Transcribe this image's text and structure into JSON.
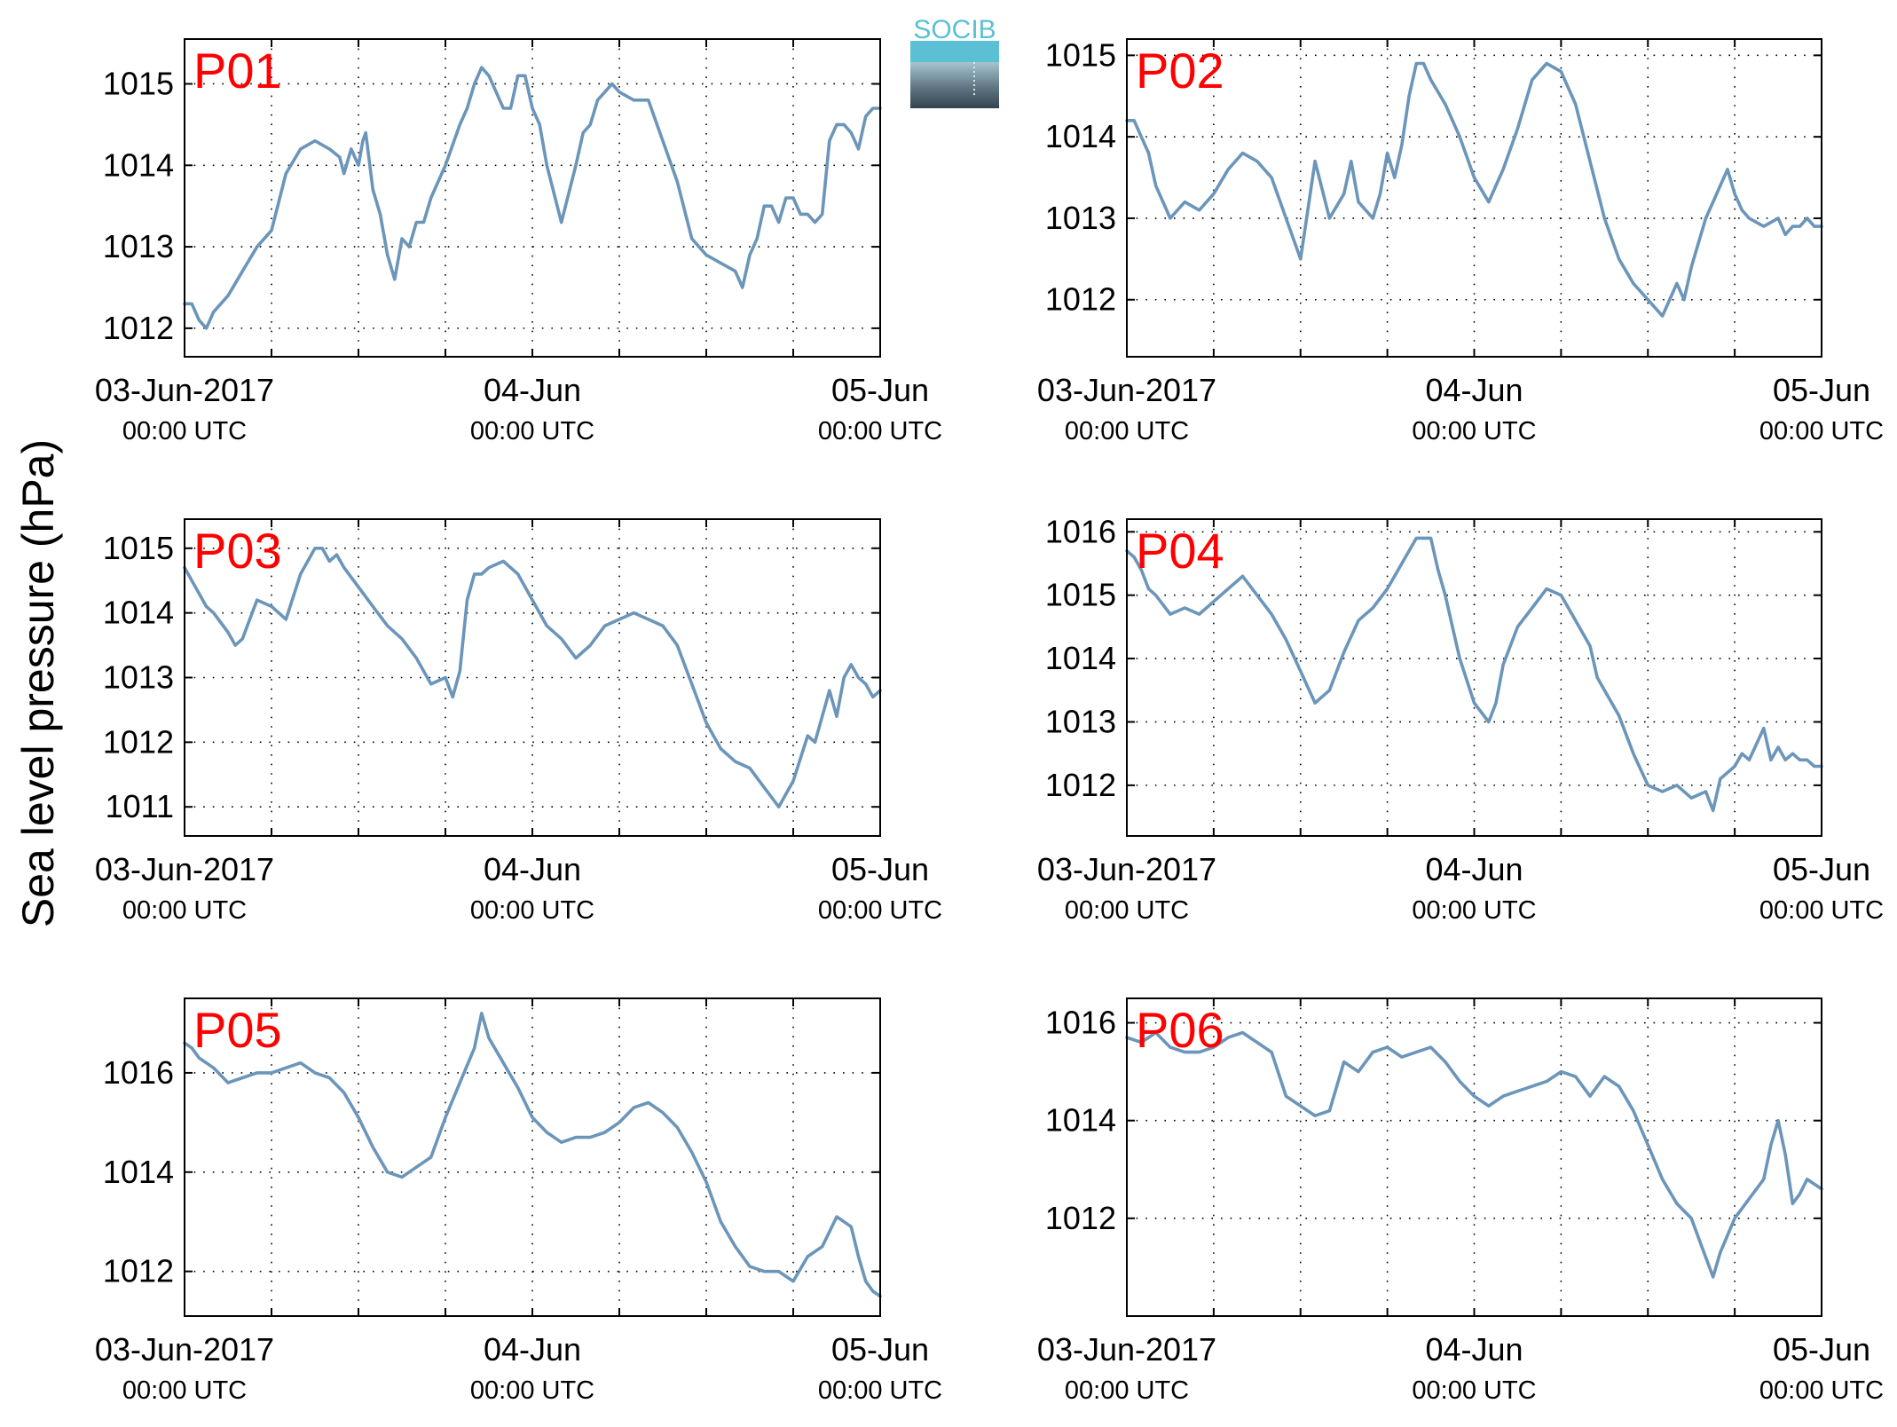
{
  "figure": {
    "ylabel": "Sea level pressure (hPa)",
    "logo_text": "SOCIB",
    "series_color": "#6b95b9",
    "panel_label_color": "#ff0000",
    "logo_colors": {
      "accent": "#5bc0d4",
      "dark": "#33444f",
      "light": "#a6c4d0"
    },
    "x_tick_labels": [
      {
        "date": "03-Jun-2017",
        "time": "00:00 UTC"
      },
      {
        "date": "04-Jun",
        "time": "00:00 UTC"
      },
      {
        "date": "05-Jun",
        "time": "00:00 UTC"
      }
    ]
  },
  "chart_data": [
    {
      "type": "line",
      "name": "P01",
      "xlim": [
        0,
        48
      ],
      "ylim": [
        1011.65,
        1015.55
      ],
      "grid": "dotted",
      "x_tick_hours": [
        0,
        24,
        48
      ],
      "x_minor_hours": [
        6,
        12,
        18,
        30,
        36,
        42
      ],
      "yticks": [
        1012,
        1013,
        1014,
        1015
      ],
      "x": [
        0,
        0.5,
        1,
        1.5,
        2,
        3,
        4,
        5,
        6,
        7,
        8,
        9,
        10,
        10.7,
        11,
        11.5,
        12,
        12.3,
        12.5,
        13,
        13.5,
        14,
        14.5,
        15,
        15.5,
        16,
        16.5,
        17,
        18,
        19,
        19.5,
        20,
        20.5,
        21,
        22,
        22.5,
        23,
        23.5,
        24,
        24.5,
        25,
        26,
        27,
        27.5,
        28,
        28.5,
        29,
        29.5,
        30,
        31,
        32,
        33,
        34,
        35,
        35.5,
        36,
        37,
        38,
        38.5,
        39,
        39.5,
        40,
        40.5,
        41,
        41.5,
        42,
        42.5,
        43,
        43.5,
        44,
        44.5,
        45,
        45.5,
        46,
        46.5,
        47,
        47.5,
        48
      ],
      "y": [
        1012.3,
        1012.3,
        1012.1,
        1012.0,
        1012.2,
        1012.4,
        1012.7,
        1013.0,
        1013.2,
        1013.9,
        1014.2,
        1014.3,
        1014.2,
        1014.1,
        1013.9,
        1014.2,
        1014.0,
        1014.3,
        1014.4,
        1013.7,
        1013.4,
        1012.9,
        1012.6,
        1013.1,
        1013.0,
        1013.3,
        1013.3,
        1013.6,
        1014.0,
        1014.5,
        1014.7,
        1015.0,
        1015.2,
        1015.1,
        1014.7,
        1014.7,
        1015.1,
        1015.1,
        1014.7,
        1014.5,
        1014.0,
        1013.3,
        1014.0,
        1014.4,
        1014.5,
        1014.8,
        1014.9,
        1015.0,
        1014.9,
        1014.8,
        1014.8,
        1014.3,
        1013.8,
        1013.1,
        1013.0,
        1012.9,
        1012.8,
        1012.7,
        1012.5,
        1012.9,
        1013.1,
        1013.5,
        1013.5,
        1013.3,
        1013.6,
        1013.6,
        1013.4,
        1013.4,
        1013.3,
        1013.4,
        1014.3,
        1014.5,
        1014.5,
        1014.4,
        1014.2,
        1014.6,
        1014.7,
        1014.7
      ]
    },
    {
      "type": "line",
      "name": "P02",
      "xlim": [
        0,
        48
      ],
      "ylim": [
        1011.3,
        1015.2
      ],
      "grid": "dotted",
      "x_tick_hours": [
        0,
        24,
        48
      ],
      "x_minor_hours": [
        6,
        12,
        18,
        30,
        36,
        42
      ],
      "yticks": [
        1012,
        1013,
        1014,
        1015
      ],
      "x": [
        0,
        0.5,
        1,
        1.5,
        2,
        3,
        4,
        5,
        6,
        7,
        8,
        9,
        10,
        11,
        12,
        13,
        14,
        15,
        15.5,
        16,
        16.5,
        17,
        17.5,
        18,
        18.5,
        19,
        19.5,
        20,
        20.5,
        21,
        22,
        23,
        24,
        25,
        26,
        27,
        28,
        29,
        30,
        31,
        32,
        33,
        34,
        35,
        36,
        37,
        38,
        38.5,
        39,
        39.5,
        40,
        40.5,
        41,
        41.5,
        42,
        42.5,
        43,
        44,
        45,
        45.5,
        46,
        46.5,
        47,
        47.5,
        48
      ],
      "y": [
        1014.2,
        1014.2,
        1014.0,
        1013.8,
        1013.4,
        1013.0,
        1013.2,
        1013.1,
        1013.3,
        1013.6,
        1013.8,
        1013.7,
        1013.5,
        1013.0,
        1012.5,
        1013.7,
        1013.0,
        1013.3,
        1013.7,
        1013.2,
        1013.1,
        1013.0,
        1013.3,
        1013.8,
        1013.5,
        1013.9,
        1014.5,
        1014.9,
        1014.9,
        1014.7,
        1014.4,
        1014.0,
        1013.5,
        1013.2,
        1013.6,
        1014.1,
        1014.7,
        1014.9,
        1014.8,
        1014.4,
        1013.7,
        1013.0,
        1012.5,
        1012.2,
        1012.0,
        1011.8,
        1012.2,
        1012.0,
        1012.4,
        1012.7,
        1013.0,
        1013.2,
        1013.4,
        1013.6,
        1013.3,
        1013.1,
        1013.0,
        1012.9,
        1013.0,
        1012.8,
        1012.9,
        1012.9,
        1013.0,
        1012.9,
        1012.9
      ]
    },
    {
      "type": "line",
      "name": "P03",
      "xlim": [
        0,
        48
      ],
      "ylim": [
        1010.55,
        1015.45
      ],
      "grid": "dotted",
      "x_tick_hours": [
        0,
        24,
        48
      ],
      "x_minor_hours": [
        6,
        12,
        18,
        30,
        36,
        42
      ],
      "yticks": [
        1011,
        1012,
        1013,
        1014,
        1015
      ],
      "x": [
        0,
        0.5,
        1,
        1.5,
        2,
        3,
        3.5,
        4,
        4.5,
        5,
        6,
        6.5,
        7,
        8,
        9,
        9.5,
        10,
        10.5,
        11,
        12,
        13,
        14,
        15,
        16,
        17,
        18,
        18.5,
        19,
        19.5,
        20,
        20.5,
        21,
        22,
        23,
        24,
        25,
        26,
        27,
        28,
        29,
        30,
        31,
        32,
        33,
        34,
        35,
        36,
        37,
        38,
        39,
        40,
        41,
        42,
        43,
        43.5,
        44,
        44.5,
        45,
        45.5,
        46,
        46.5,
        47,
        47.5,
        48
      ],
      "y": [
        1014.7,
        1014.5,
        1014.3,
        1014.1,
        1014.0,
        1013.7,
        1013.5,
        1013.6,
        1013.9,
        1014.2,
        1014.1,
        1014.0,
        1013.9,
        1014.6,
        1015.0,
        1015.0,
        1014.8,
        1014.9,
        1014.7,
        1014.4,
        1014.1,
        1013.8,
        1013.6,
        1013.3,
        1012.9,
        1013.0,
        1012.7,
        1013.1,
        1014.2,
        1014.6,
        1014.6,
        1014.7,
        1014.8,
        1014.6,
        1014.2,
        1013.8,
        1013.6,
        1013.3,
        1013.5,
        1013.8,
        1013.9,
        1014.0,
        1013.9,
        1013.8,
        1013.5,
        1012.9,
        1012.3,
        1011.9,
        1011.7,
        1011.6,
        1011.3,
        1011.0,
        1011.4,
        1012.1,
        1012.0,
        1012.4,
        1012.8,
        1012.4,
        1013.0,
        1013.2,
        1013.0,
        1012.9,
        1012.7,
        1012.8
      ]
    },
    {
      "type": "line",
      "name": "P04",
      "xlim": [
        0,
        48
      ],
      "ylim": [
        1011.2,
        1016.2
      ],
      "grid": "dotted",
      "x_tick_hours": [
        0,
        24,
        48
      ],
      "x_minor_hours": [
        6,
        12,
        18,
        30,
        36,
        42
      ],
      "yticks": [
        1012,
        1013,
        1014,
        1015,
        1016
      ],
      "x": [
        0,
        0.5,
        1,
        1.5,
        2,
        3,
        4,
        5,
        6,
        7,
        8,
        9,
        10,
        11,
        12,
        13,
        14,
        15,
        16,
        17,
        18,
        19,
        20,
        21,
        21.5,
        22,
        22.5,
        23,
        24,
        25,
        25.5,
        26,
        27,
        28,
        29,
        30,
        31,
        32,
        32.5,
        33,
        34,
        35,
        36,
        37,
        38,
        39,
        40,
        40.5,
        41,
        42,
        42.5,
        43,
        44,
        44.5,
        45,
        45.5,
        46,
        46.5,
        47,
        47.5,
        48
      ],
      "y": [
        1015.7,
        1015.6,
        1015.4,
        1015.1,
        1015.0,
        1014.7,
        1014.8,
        1014.7,
        1014.9,
        1015.1,
        1015.3,
        1015.0,
        1014.7,
        1014.3,
        1013.8,
        1013.3,
        1013.5,
        1014.1,
        1014.6,
        1014.8,
        1015.1,
        1015.5,
        1015.9,
        1015.9,
        1015.4,
        1015.0,
        1014.5,
        1014.0,
        1013.3,
        1013.0,
        1013.3,
        1013.9,
        1014.5,
        1014.8,
        1015.1,
        1015.0,
        1014.6,
        1014.2,
        1013.7,
        1013.5,
        1013.1,
        1012.5,
        1012.0,
        1011.9,
        1012.0,
        1011.8,
        1011.9,
        1011.6,
        1012.1,
        1012.3,
        1012.5,
        1012.4,
        1012.9,
        1012.4,
        1012.6,
        1012.4,
        1012.5,
        1012.4,
        1012.4,
        1012.3,
        1012.3
      ]
    },
    {
      "type": "line",
      "name": "P05",
      "xlim": [
        0,
        48
      ],
      "ylim": [
        1011.1,
        1017.5
      ],
      "grid": "dotted",
      "x_tick_hours": [
        0,
        24,
        48
      ],
      "x_minor_hours": [
        6,
        12,
        18,
        30,
        36,
        42
      ],
      "yticks": [
        1012,
        1014,
        1016
      ],
      "x": [
        0,
        0.5,
        1,
        2,
        3,
        4,
        5,
        6,
        7,
        8,
        9,
        10,
        11,
        12,
        13,
        14,
        15,
        16,
        17,
        18,
        19,
        20,
        20.5,
        21,
        22,
        23,
        24,
        25,
        26,
        27,
        28,
        29,
        30,
        31,
        32,
        33,
        34,
        35,
        36,
        37,
        38,
        39,
        40,
        41,
        42,
        43,
        44,
        45,
        45.5,
        46,
        46.5,
        47,
        47.5,
        48
      ],
      "y": [
        1016.6,
        1016.5,
        1016.3,
        1016.1,
        1015.8,
        1015.9,
        1016.0,
        1016.0,
        1016.1,
        1016.2,
        1016.0,
        1015.9,
        1015.6,
        1015.1,
        1014.5,
        1014.0,
        1013.9,
        1014.1,
        1014.3,
        1015.1,
        1015.8,
        1016.5,
        1017.2,
        1016.7,
        1016.2,
        1015.7,
        1015.1,
        1014.8,
        1014.6,
        1014.7,
        1014.7,
        1014.8,
        1015.0,
        1015.3,
        1015.4,
        1015.2,
        1014.9,
        1014.4,
        1013.8,
        1013.0,
        1012.5,
        1012.1,
        1012.0,
        1012.0,
        1011.8,
        1012.3,
        1012.5,
        1013.1,
        1013.0,
        1012.9,
        1012.3,
        1011.8,
        1011.6,
        1011.5
      ]
    },
    {
      "type": "line",
      "name": "P06",
      "xlim": [
        0,
        48
      ],
      "ylim": [
        1010.0,
        1016.5
      ],
      "grid": "dotted",
      "x_tick_hours": [
        0,
        24,
        48
      ],
      "x_minor_hours": [
        6,
        12,
        18,
        30,
        36,
        42
      ],
      "yticks": [
        1012,
        1014,
        1016
      ],
      "x": [
        0,
        1,
        2,
        3,
        4,
        5,
        6,
        7,
        8,
        9,
        10,
        11,
        12,
        13,
        14,
        15,
        16,
        17,
        18,
        19,
        20,
        21,
        22,
        23,
        24,
        25,
        26,
        27,
        28,
        29,
        30,
        31,
        32,
        33,
        34,
        35,
        36,
        37,
        38,
        39,
        40,
        40.5,
        41,
        42,
        43,
        44,
        44.5,
        45,
        45.5,
        46,
        46.5,
        47,
        47.5,
        48
      ],
      "y": [
        1015.7,
        1015.6,
        1015.8,
        1015.5,
        1015.4,
        1015.4,
        1015.5,
        1015.7,
        1015.8,
        1015.6,
        1015.4,
        1014.5,
        1014.3,
        1014.1,
        1014.2,
        1015.2,
        1015.0,
        1015.4,
        1015.5,
        1015.3,
        1015.4,
        1015.5,
        1015.2,
        1014.8,
        1014.5,
        1014.3,
        1014.5,
        1014.6,
        1014.7,
        1014.8,
        1015.0,
        1014.9,
        1014.5,
        1014.9,
        1014.7,
        1014.2,
        1013.5,
        1012.8,
        1012.3,
        1012.0,
        1011.2,
        1010.8,
        1011.3,
        1012.0,
        1012.4,
        1012.8,
        1013.5,
        1014.0,
        1013.3,
        1012.3,
        1012.5,
        1012.8,
        1012.7,
        1012.6
      ]
    }
  ]
}
